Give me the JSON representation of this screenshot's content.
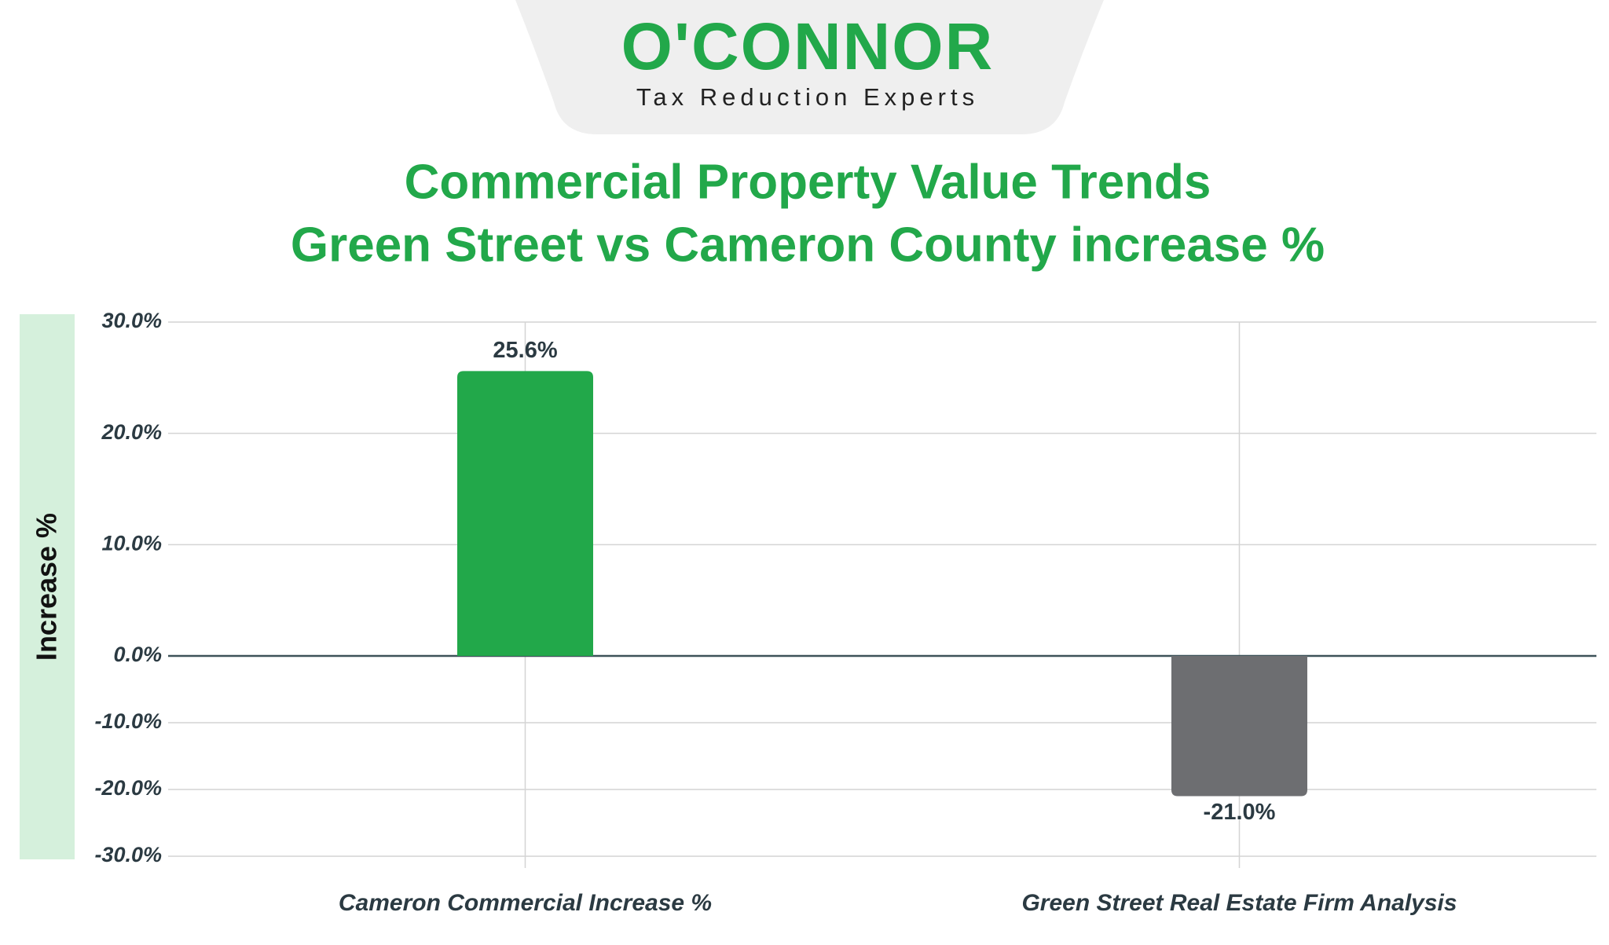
{
  "logo": {
    "name": "O'CONNOR",
    "tagline": "Tax Reduction Experts"
  },
  "chart_data": {
    "type": "bar",
    "title": [
      "Commercial Property Value Trends",
      "Green Street vs Cameron County increase %"
    ],
    "y_label": "Increase %",
    "categories": [
      "Cameron Commercial Increase %",
      "Green Street Real Estate Firm Analysis"
    ],
    "values": [
      25.6,
      -21.0
    ],
    "value_labels": [
      "25.6%",
      "-21.0%"
    ],
    "colors": [
      "#22a84a",
      "#6d6e71"
    ],
    "ylim": [
      -30,
      30
    ],
    "yticks": [
      {
        "value": -30,
        "label": "-30.0%"
      },
      {
        "value": -20,
        "label": "-20.0%"
      },
      {
        "value": -10,
        "label": "-10.0%"
      },
      {
        "value": 0,
        "label": "0.0%"
      },
      {
        "value": 10,
        "label": "10.0%"
      },
      {
        "value": 20,
        "label": "20.0%"
      },
      {
        "value": 30,
        "label": "30.0%"
      }
    ],
    "grid": true
  }
}
